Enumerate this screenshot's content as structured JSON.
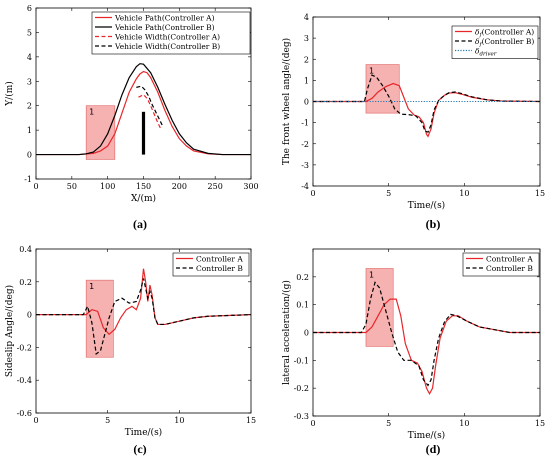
{
  "chart_data": [
    {
      "id": "a",
      "type": "line",
      "caption": "(a)",
      "xlabel": "X/(m)",
      "ylabel": "Y/(m)",
      "xlim": [
        0,
        300
      ],
      "ylim": [
        -1,
        6
      ],
      "xticks": [
        0,
        50,
        100,
        150,
        200,
        250,
        300
      ],
      "yticks": [
        -1,
        0,
        1,
        2,
        3,
        4,
        5,
        6
      ],
      "legend_position": "top-right",
      "series": [
        {
          "name": "Vehicle Path(Controller A)",
          "color": "#e8262a",
          "dash": "solid",
          "x": [
            0,
            60,
            80,
            90,
            100,
            110,
            120,
            130,
            140,
            145,
            150,
            155,
            160,
            170,
            180,
            190,
            200,
            210,
            220,
            240,
            260,
            300
          ],
          "y": [
            0,
            0,
            0.05,
            0.15,
            0.35,
            0.85,
            1.7,
            2.55,
            3.1,
            3.3,
            3.4,
            3.35,
            3.15,
            2.55,
            1.8,
            1.15,
            0.65,
            0.35,
            0.15,
            0.03,
            0,
            0
          ]
        },
        {
          "name": "Vehicle Path(Controller B)",
          "color": "#000000",
          "dash": "solid",
          "x": [
            0,
            60,
            70,
            80,
            90,
            100,
            110,
            120,
            130,
            140,
            145,
            150,
            160,
            170,
            180,
            190,
            200,
            210,
            220,
            240,
            260,
            300
          ],
          "y": [
            0,
            0,
            0.03,
            0.1,
            0.35,
            0.85,
            1.6,
            2.45,
            3.15,
            3.6,
            3.72,
            3.7,
            3.35,
            2.75,
            2.05,
            1.4,
            0.85,
            0.48,
            0.22,
            0.05,
            0,
            0
          ]
        },
        {
          "name": "Vehicle Width(Controller A)",
          "color": "#e8262a",
          "dash": "dash",
          "x": [
            143,
            150,
            155,
            160,
            165,
            170,
            175
          ],
          "y": [
            2.35,
            2.45,
            2.3,
            2.0,
            1.65,
            1.3,
            1.0
          ]
        },
        {
          "name": "Vehicle Width(Controller B)",
          "color": "#000000",
          "dash": "dash",
          "x": [
            140,
            147,
            152,
            157,
            162,
            167,
            172,
            177
          ],
          "y": [
            2.75,
            2.8,
            2.65,
            2.4,
            2.05,
            1.75,
            1.45,
            1.15
          ]
        }
      ],
      "highlight": {
        "label": "1",
        "x": [
          70,
          110
        ],
        "y": [
          -0.2,
          2.0
        ]
      },
      "obstacle": {
        "x": 150,
        "y": [
          0,
          1.75
        ],
        "color": "#000000"
      }
    },
    {
      "id": "b",
      "type": "line",
      "caption": "(b)",
      "xlabel": "Time/(s)",
      "ylabel": "The front wheel angle/(deg)",
      "xlim": [
        0,
        15
      ],
      "ylim": [
        -4,
        4
      ],
      "xticks": [
        0,
        5,
        10,
        15
      ],
      "yticks": [
        -4,
        -3,
        -2,
        -1,
        0,
        1,
        2,
        3,
        4
      ],
      "legend_position": "top-right",
      "series": [
        {
          "name": "δf(Controller A)",
          "legend_main": "δ",
          "legend_sub": "f",
          "legend_rest": "(Controller A)",
          "color": "#e8262a",
          "dash": "solid",
          "x": [
            0,
            3.5,
            3.9,
            4.3,
            4.8,
            5.3,
            5.7,
            6.0,
            6.3,
            6.7,
            7.0,
            7.3,
            7.5,
            7.6,
            7.8,
            8.0,
            8.3,
            8.7,
            9.0,
            9.4,
            9.8,
            10.5,
            11.5,
            12.5,
            15
          ],
          "y": [
            0,
            0,
            0.15,
            0.45,
            0.7,
            0.85,
            0.75,
            0.2,
            -0.35,
            -0.65,
            -0.72,
            -1.0,
            -1.55,
            -1.65,
            -1.3,
            -0.55,
            0.05,
            0.3,
            0.4,
            0.42,
            0.35,
            0.2,
            0.08,
            0.02,
            0
          ]
        },
        {
          "name": "δf(Controller B)",
          "legend_main": "δ",
          "legend_sub": "f",
          "legend_rest": "(Controller B)",
          "color": "#000000",
          "dash": "dash",
          "x": [
            0,
            3.4,
            3.6,
            3.9,
            4.2,
            4.6,
            5.0,
            5.4,
            5.8,
            6.3,
            6.8,
            7.2,
            7.4,
            7.6,
            7.8,
            8.0,
            8.3,
            8.7,
            9.0,
            9.4,
            9.8,
            10.5,
            11.5,
            12.5,
            15
          ],
          "y": [
            0,
            0,
            0.6,
            1.25,
            1.15,
            0.75,
            0.25,
            -0.35,
            -0.6,
            -0.62,
            -0.68,
            -1.0,
            -1.4,
            -1.45,
            -1.1,
            -0.4,
            0.05,
            0.3,
            0.42,
            0.45,
            0.38,
            0.22,
            0.08,
            0.02,
            0
          ]
        },
        {
          "name": "δdriver",
          "legend_main": "δ",
          "legend_sub": "driver",
          "legend_rest": "",
          "color": "#1f77b4",
          "dash": "dot",
          "x": [
            0,
            15
          ],
          "y": [
            0,
            0
          ]
        }
      ],
      "highlight": {
        "label": "1",
        "x": [
          3.5,
          5.7
        ],
        "y": [
          -0.55,
          1.75
        ]
      }
    },
    {
      "id": "c",
      "type": "line",
      "caption": "(c)",
      "xlabel": "Time/(s)",
      "ylabel": "Sideslip Angle/(deg)",
      "xlim": [
        0,
        15
      ],
      "ylim": [
        -0.6,
        0.4
      ],
      "xticks": [
        0,
        5,
        10,
        15
      ],
      "yticks": [
        -0.6,
        -0.4,
        -0.2,
        0,
        0.2,
        0.4
      ],
      "legend_position": "top-right",
      "series": [
        {
          "name": "Controller A",
          "color": "#e8262a",
          "dash": "solid",
          "x": [
            0,
            3.5,
            3.9,
            4.3,
            4.7,
            5.1,
            5.5,
            5.9,
            6.3,
            6.7,
            7.0,
            7.3,
            7.5,
            7.65,
            7.8,
            7.95,
            8.1,
            8.3,
            8.5,
            9.0,
            10.0,
            11.0,
            12.0,
            15
          ],
          "y": [
            0,
            0,
            0.03,
            0.02,
            -0.08,
            -0.12,
            -0.09,
            -0.02,
            0.03,
            0.05,
            0.03,
            0.1,
            0.28,
            0.2,
            0.08,
            0.18,
            0.12,
            -0.02,
            -0.06,
            -0.06,
            -0.04,
            -0.02,
            -0.01,
            0
          ]
        },
        {
          "name": "Controller B",
          "color": "#000000",
          "dash": "dash",
          "x": [
            0,
            3.3,
            3.6,
            3.9,
            4.2,
            4.5,
            4.8,
            5.1,
            5.5,
            6.0,
            6.5,
            7.0,
            7.3,
            7.5,
            7.65,
            7.8,
            7.95,
            8.1,
            8.3,
            8.5,
            9.0,
            10.0,
            11.0,
            12.0,
            15
          ],
          "y": [
            0,
            0,
            0.05,
            -0.05,
            -0.24,
            -0.22,
            -0.12,
            -0.02,
            0.08,
            0.1,
            0.07,
            0.08,
            0.15,
            0.22,
            0.16,
            0.1,
            0.14,
            0.1,
            -0.02,
            -0.06,
            -0.06,
            -0.04,
            -0.02,
            -0.01,
            0
          ]
        }
      ],
      "highlight": {
        "label": "1",
        "x": [
          3.5,
          5.4
        ],
        "y": [
          -0.26,
          0.21
        ]
      }
    },
    {
      "id": "d",
      "type": "line",
      "caption": "(d)",
      "xlabel": "Time/(s)",
      "ylabel": "lateral acceleration/(g)",
      "xlim": [
        0,
        15
      ],
      "ylim": [
        -0.3,
        0.3
      ],
      "xticks": [
        0,
        5,
        10,
        15
      ],
      "yticks": [
        -0.3,
        -0.2,
        -0.1,
        0,
        0.1,
        0.2
      ],
      "legend_position": "top-right",
      "series": [
        {
          "name": "Controller A",
          "color": "#e8262a",
          "dash": "solid",
          "x": [
            0,
            3.5,
            3.9,
            4.3,
            4.7,
            5.1,
            5.5,
            5.8,
            6.1,
            6.5,
            6.9,
            7.2,
            7.5,
            7.7,
            7.9,
            8.1,
            8.4,
            8.8,
            9.2,
            9.6,
            10.2,
            11.0,
            12.0,
            13.0,
            15
          ],
          "y": [
            0,
            0,
            0.02,
            0.06,
            0.1,
            0.12,
            0.12,
            0.06,
            -0.04,
            -0.1,
            -0.11,
            -0.14,
            -0.2,
            -0.22,
            -0.2,
            -0.12,
            -0.02,
            0.04,
            0.06,
            0.06,
            0.04,
            0.02,
            0.01,
            0,
            0
          ]
        },
        {
          "name": "Controller B",
          "color": "#000000",
          "dash": "dash",
          "x": [
            0,
            3.2,
            3.5,
            3.8,
            4.1,
            4.4,
            4.8,
            5.2,
            5.6,
            6.0,
            6.5,
            7.0,
            7.3,
            7.6,
            7.8,
            8.0,
            8.3,
            8.7,
            9.1,
            9.5,
            10.2,
            11.0,
            12.0,
            13.0,
            15
          ],
          "y": [
            0,
            0,
            0.03,
            0.12,
            0.18,
            0.16,
            0.08,
            0.0,
            -0.07,
            -0.1,
            -0.1,
            -0.12,
            -0.17,
            -0.19,
            -0.17,
            -0.1,
            -0.02,
            0.04,
            0.065,
            0.06,
            0.04,
            0.02,
            0.01,
            0,
            0
          ]
        }
      ],
      "highlight": {
        "label": "1",
        "x": [
          3.5,
          5.3
        ],
        "y": [
          -0.05,
          0.23
        ]
      }
    }
  ]
}
